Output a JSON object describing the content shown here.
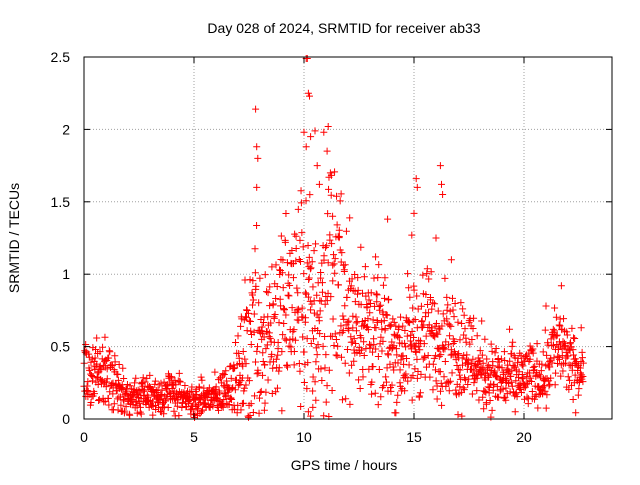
{
  "chart_data": {
    "type": "scatter",
    "title": "Day 028 of 2024, SRMTID for receiver ab33",
    "xlabel": "GPS time / hours",
    "ylabel": "SRMTID / TECUs",
    "xlim": [
      0,
      24
    ],
    "ylim": [
      0,
      2.5
    ],
    "grid": true,
    "marker": "+",
    "marker_color": "#ff0000",
    "xticks": [
      0,
      5,
      10,
      15,
      20
    ],
    "xtick_labels": [
      "0",
      "5",
      "10",
      "15",
      "20"
    ],
    "yticks": [
      0,
      0.5,
      1,
      1.5,
      2,
      2.5
    ],
    "ytick_labels": [
      "0",
      "0.5",
      "1",
      "1.5",
      "2",
      "2.5"
    ],
    "trend_profile": {
      "hours": [
        0,
        0.5,
        1,
        1.5,
        2,
        2.5,
        3,
        3.5,
        4,
        4.5,
        5,
        5.5,
        6,
        6.5,
        7,
        7.3,
        7.6,
        7.8,
        8,
        8.5,
        9,
        9.5,
        10,
        10.3,
        10.6,
        11,
        11.3,
        11.6,
        12,
        12.5,
        13,
        13.5,
        14,
        14.5,
        15,
        15.5,
        16,
        16.5,
        17,
        17.5,
        18,
        18.5,
        19,
        19.5,
        20,
        20.5,
        21,
        21.3,
        21.7,
        22,
        22.5,
        22.7
      ],
      "median": [
        0.3,
        0.28,
        0.28,
        0.25,
        0.15,
        0.14,
        0.16,
        0.17,
        0.2,
        0.13,
        0.12,
        0.14,
        0.15,
        0.22,
        0.3,
        0.4,
        0.6,
        0.75,
        0.6,
        0.65,
        0.7,
        0.8,
        0.85,
        0.75,
        0.7,
        0.85,
        1.0,
        0.95,
        0.75,
        0.7,
        0.6,
        0.55,
        0.5,
        0.45,
        0.55,
        0.6,
        0.55,
        0.6,
        0.5,
        0.45,
        0.35,
        0.3,
        0.28,
        0.28,
        0.28,
        0.3,
        0.32,
        0.5,
        0.5,
        0.4,
        0.3,
        0.3
      ],
      "spread": [
        0.12,
        0.12,
        0.12,
        0.1,
        0.06,
        0.06,
        0.07,
        0.07,
        0.08,
        0.06,
        0.06,
        0.06,
        0.07,
        0.08,
        0.12,
        0.25,
        0.35,
        0.35,
        0.3,
        0.3,
        0.3,
        0.35,
        0.4,
        0.35,
        0.35,
        0.4,
        0.4,
        0.35,
        0.3,
        0.25,
        0.25,
        0.2,
        0.2,
        0.2,
        0.22,
        0.22,
        0.2,
        0.2,
        0.2,
        0.18,
        0.15,
        0.12,
        0.12,
        0.12,
        0.12,
        0.1,
        0.12,
        0.15,
        0.15,
        0.12,
        0.1,
        0.1
      ]
    },
    "outlier_points": [
      {
        "x": 7.8,
        "y": 2.14
      },
      {
        "x": 7.85,
        "y": 1.88
      },
      {
        "x": 7.9,
        "y": 1.8
      },
      {
        "x": 7.85,
        "y": 1.6
      },
      {
        "x": 10.1,
        "y": 2.49
      },
      {
        "x": 10.15,
        "y": 2.49
      },
      {
        "x": 10.2,
        "y": 2.25
      },
      {
        "x": 10.25,
        "y": 2.23
      },
      {
        "x": 10.0,
        "y": 1.98
      },
      {
        "x": 10.1,
        "y": 1.88
      },
      {
        "x": 10.3,
        "y": 1.95
      },
      {
        "x": 10.5,
        "y": 1.99
      },
      {
        "x": 10.6,
        "y": 1.75
      },
      {
        "x": 10.9,
        "y": 1.98
      },
      {
        "x": 11.1,
        "y": 2.02
      },
      {
        "x": 11.05,
        "y": 1.85
      },
      {
        "x": 11.2,
        "y": 1.7
      },
      {
        "x": 10.7,
        "y": 1.62
      },
      {
        "x": 11.3,
        "y": 1.4
      },
      {
        "x": 13.8,
        "y": 1.38
      },
      {
        "x": 15.0,
        "y": 1.42
      },
      {
        "x": 15.1,
        "y": 1.66
      },
      {
        "x": 15.15,
        "y": 1.6
      },
      {
        "x": 16.2,
        "y": 1.75
      },
      {
        "x": 16.25,
        "y": 1.62
      },
      {
        "x": 16.3,
        "y": 1.55
      },
      {
        "x": 14.9,
        "y": 1.27
      },
      {
        "x": 16.0,
        "y": 1.25
      },
      {
        "x": 21.7,
        "y": 0.92
      },
      {
        "x": 21.0,
        "y": 0.78
      },
      {
        "x": 22.6,
        "y": 0.63
      },
      {
        "x": 10.3,
        "y": 0.02
      },
      {
        "x": 10.2,
        "y": 0.05
      },
      {
        "x": 10.4,
        "y": 0.08
      },
      {
        "x": 8.2,
        "y": 0.06
      },
      {
        "x": 17.0,
        "y": 0.03
      },
      {
        "x": 19.6,
        "y": 0.05
      }
    ],
    "sample_count": 1600
  }
}
